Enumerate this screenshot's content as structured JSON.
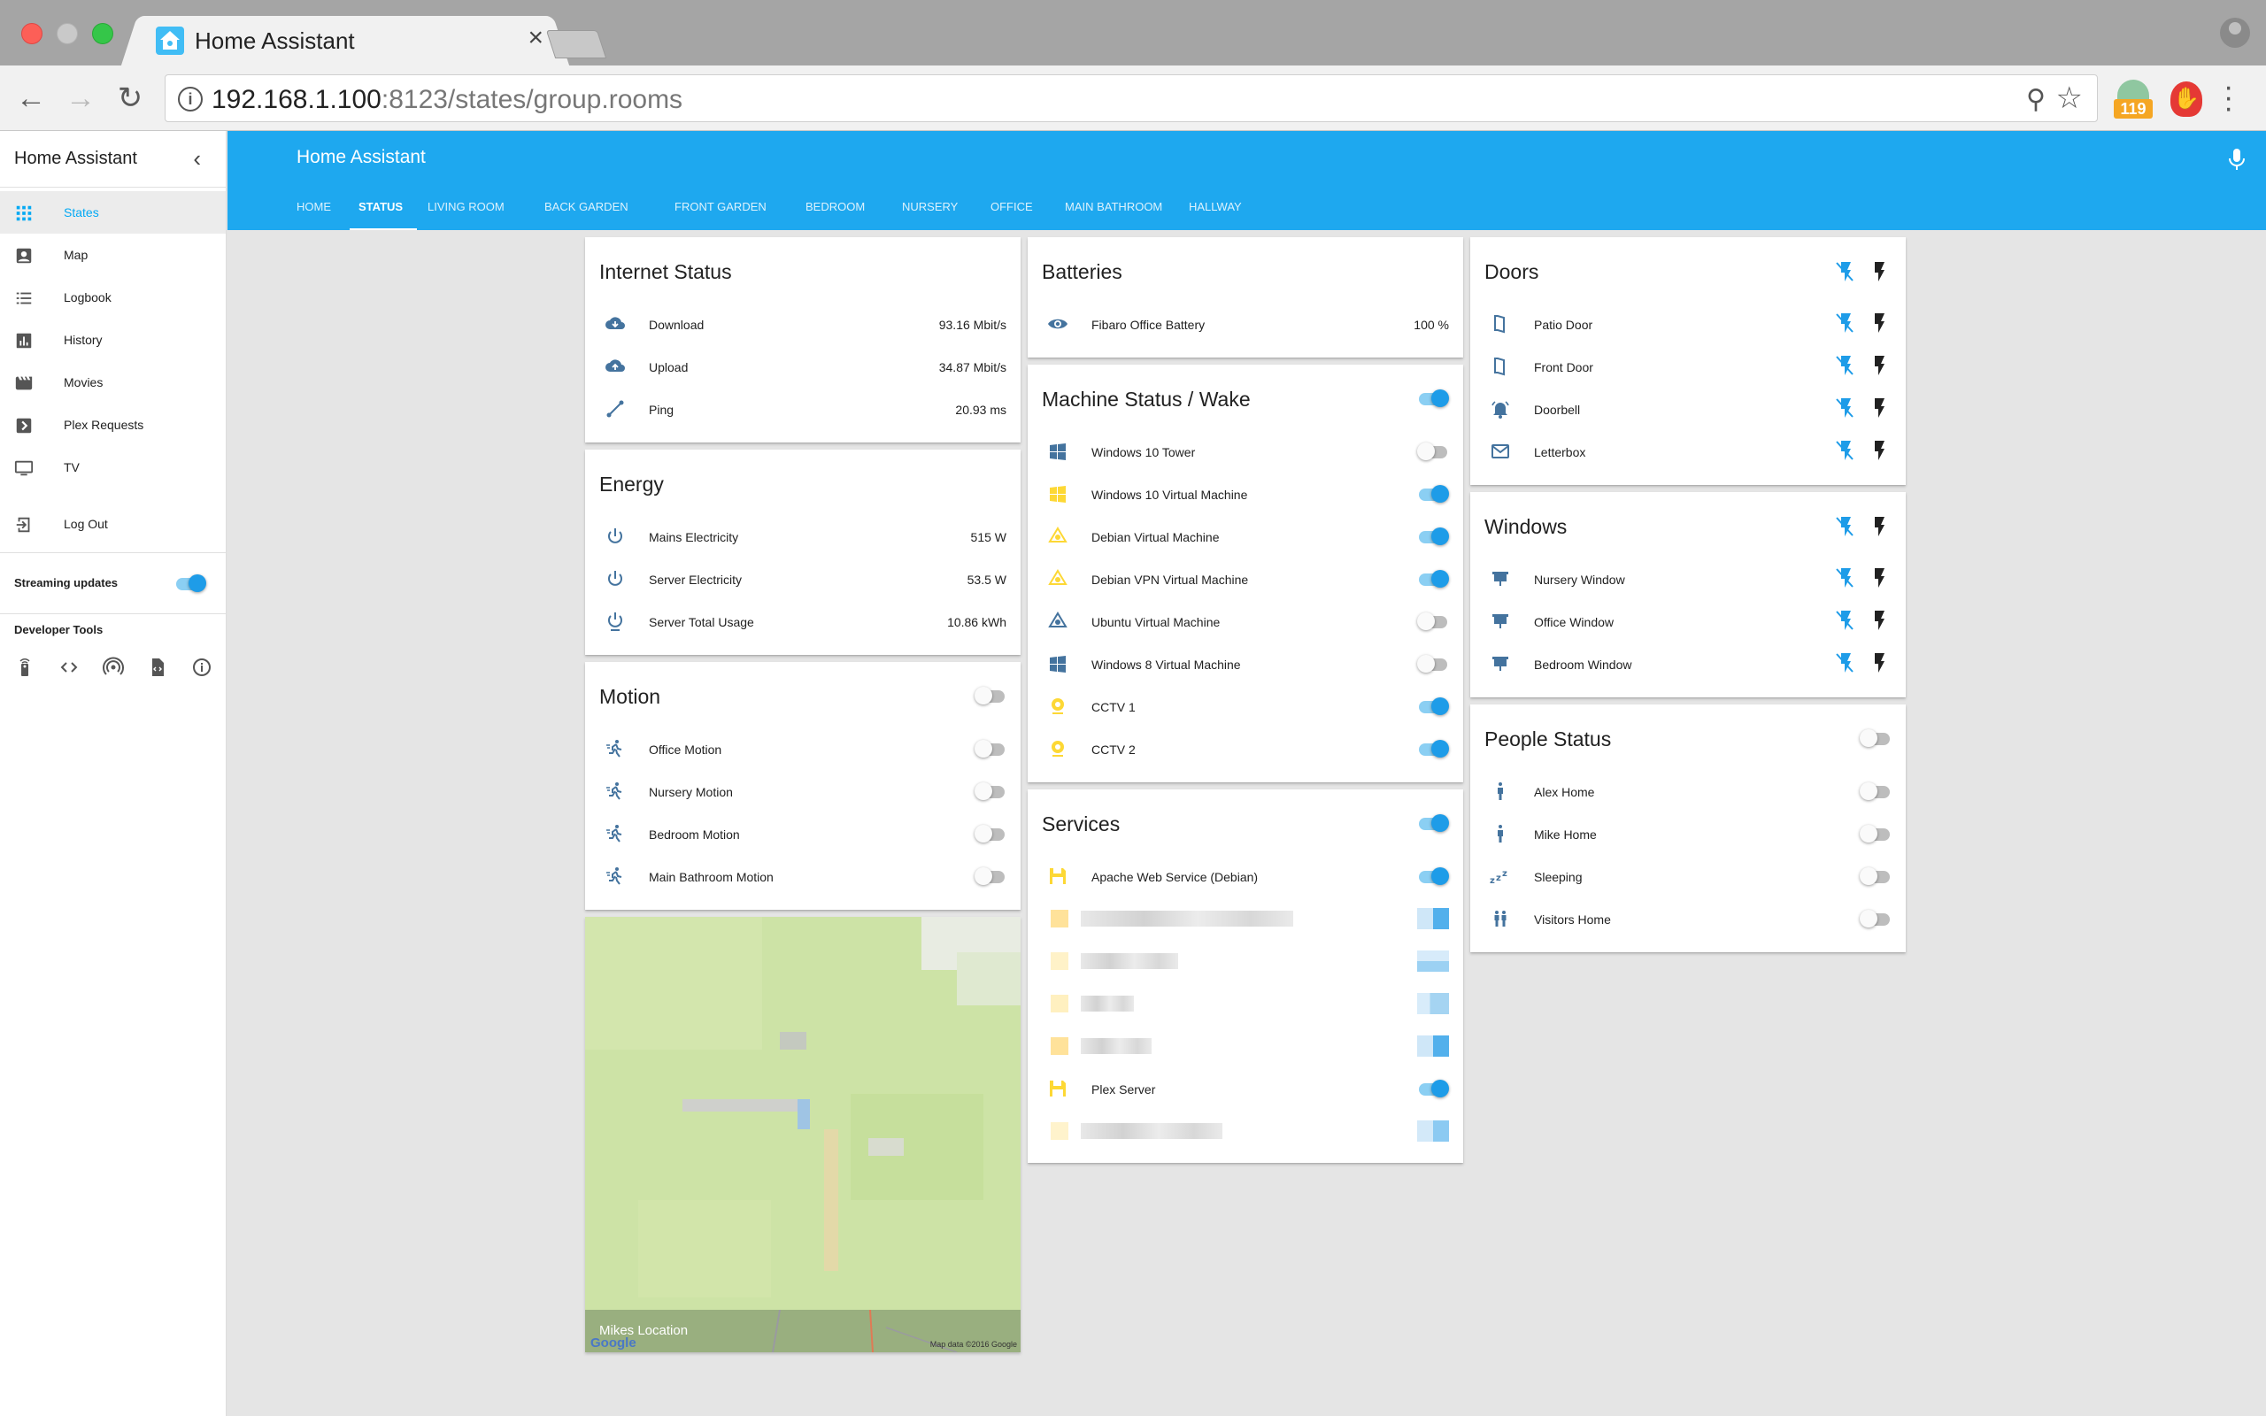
{
  "browser": {
    "tab_title": "Home Assistant",
    "tab_close": "×",
    "url_host": "192.168.1.100",
    "url_rest": ":8123/states/group.rooms",
    "extension_badge": "119"
  },
  "sidebar": {
    "title": "Home Assistant",
    "items": [
      {
        "label": "States",
        "icon": "apps-grid-icon"
      },
      {
        "label": "Map",
        "icon": "account-box-icon"
      },
      {
        "label": "Logbook",
        "icon": "list-icon"
      },
      {
        "label": "History",
        "icon": "chart-icon"
      },
      {
        "label": "Movies",
        "icon": "movie-icon"
      },
      {
        "label": "Plex Requests",
        "icon": "chevron-box-icon"
      },
      {
        "label": "TV",
        "icon": "monitor-icon"
      }
    ],
    "logout_label": "Log Out",
    "streaming_label": "Streaming updates",
    "streaming_on": true,
    "developer_tools_label": "Developer Tools"
  },
  "header": {
    "title": "Home Assistant",
    "tabs": [
      "HOME",
      "STATUS",
      "LIVING ROOM",
      "BACK GARDEN",
      "FRONT GARDEN",
      "BEDROOM",
      "NURSERY",
      "OFFICE",
      "MAIN BATHROOM",
      "HALLWAY"
    ],
    "active_tab": "STATUS"
  },
  "cards": {
    "internet": {
      "title": "Internet Status",
      "rows": [
        {
          "name": "Download",
          "value": "93.16 Mbit/s"
        },
        {
          "name": "Upload",
          "value": "34.87 Mbit/s"
        },
        {
          "name": "Ping",
          "value": "20.93 ms"
        }
      ]
    },
    "energy": {
      "title": "Energy",
      "rows": [
        {
          "name": "Mains Electricity",
          "value": "515 W"
        },
        {
          "name": "Server Electricity",
          "value": "53.5 W"
        },
        {
          "name": "Server Total Usage",
          "value": "10.86 kWh"
        }
      ]
    },
    "motion": {
      "title": "Motion",
      "rows": [
        {
          "name": "Office Motion"
        },
        {
          "name": "Nursery Motion"
        },
        {
          "name": "Bedroom Motion"
        },
        {
          "name": "Main Bathroom Motion"
        }
      ]
    },
    "map": {
      "name": "Mikes Location",
      "google": "Google",
      "credit": "Map data ©2016 Google"
    },
    "batteries": {
      "title": "Batteries",
      "rows": [
        {
          "name": "Fibaro Office Battery",
          "value": "100 %"
        }
      ]
    },
    "machine": {
      "title": "Machine Status / Wake",
      "rows": [
        {
          "name": "Windows 10 Tower",
          "on": false
        },
        {
          "name": "Windows 10 Virtual Machine",
          "on": true
        },
        {
          "name": "Debian Virtual Machine",
          "on": true
        },
        {
          "name": "Debian VPN Virtual Machine",
          "on": true
        },
        {
          "name": "Ubuntu Virtual Machine",
          "on": false
        },
        {
          "name": "Windows 8 Virtual Machine",
          "on": false
        },
        {
          "name": "CCTV 1",
          "on": true
        },
        {
          "name": "CCTV 2",
          "on": true
        }
      ]
    },
    "services": {
      "title": "Services",
      "rows": [
        {
          "name": "Apache Web Service (Debian)",
          "on": true
        },
        {
          "name": "Plex Server",
          "on": true
        }
      ]
    },
    "doors": {
      "title": "Doors",
      "rows": [
        {
          "name": "Patio Door"
        },
        {
          "name": "Front Door"
        },
        {
          "name": "Doorbell"
        },
        {
          "name": "Letterbox"
        }
      ]
    },
    "windows": {
      "title": "Windows",
      "rows": [
        {
          "name": "Nursery Window"
        },
        {
          "name": "Office Window"
        },
        {
          "name": "Bedroom Window"
        }
      ]
    },
    "people": {
      "title": "People Status",
      "rows": [
        {
          "name": "Alex Home"
        },
        {
          "name": "Mike Home"
        },
        {
          "name": "Sleeping"
        },
        {
          "name": "Visitors Home"
        }
      ]
    }
  },
  "colors": {
    "accent": "#1ea8ef",
    "icon_blue": "#44739e",
    "icon_yellow": "#fdd835",
    "toggle_on": "#1e9ce8"
  }
}
